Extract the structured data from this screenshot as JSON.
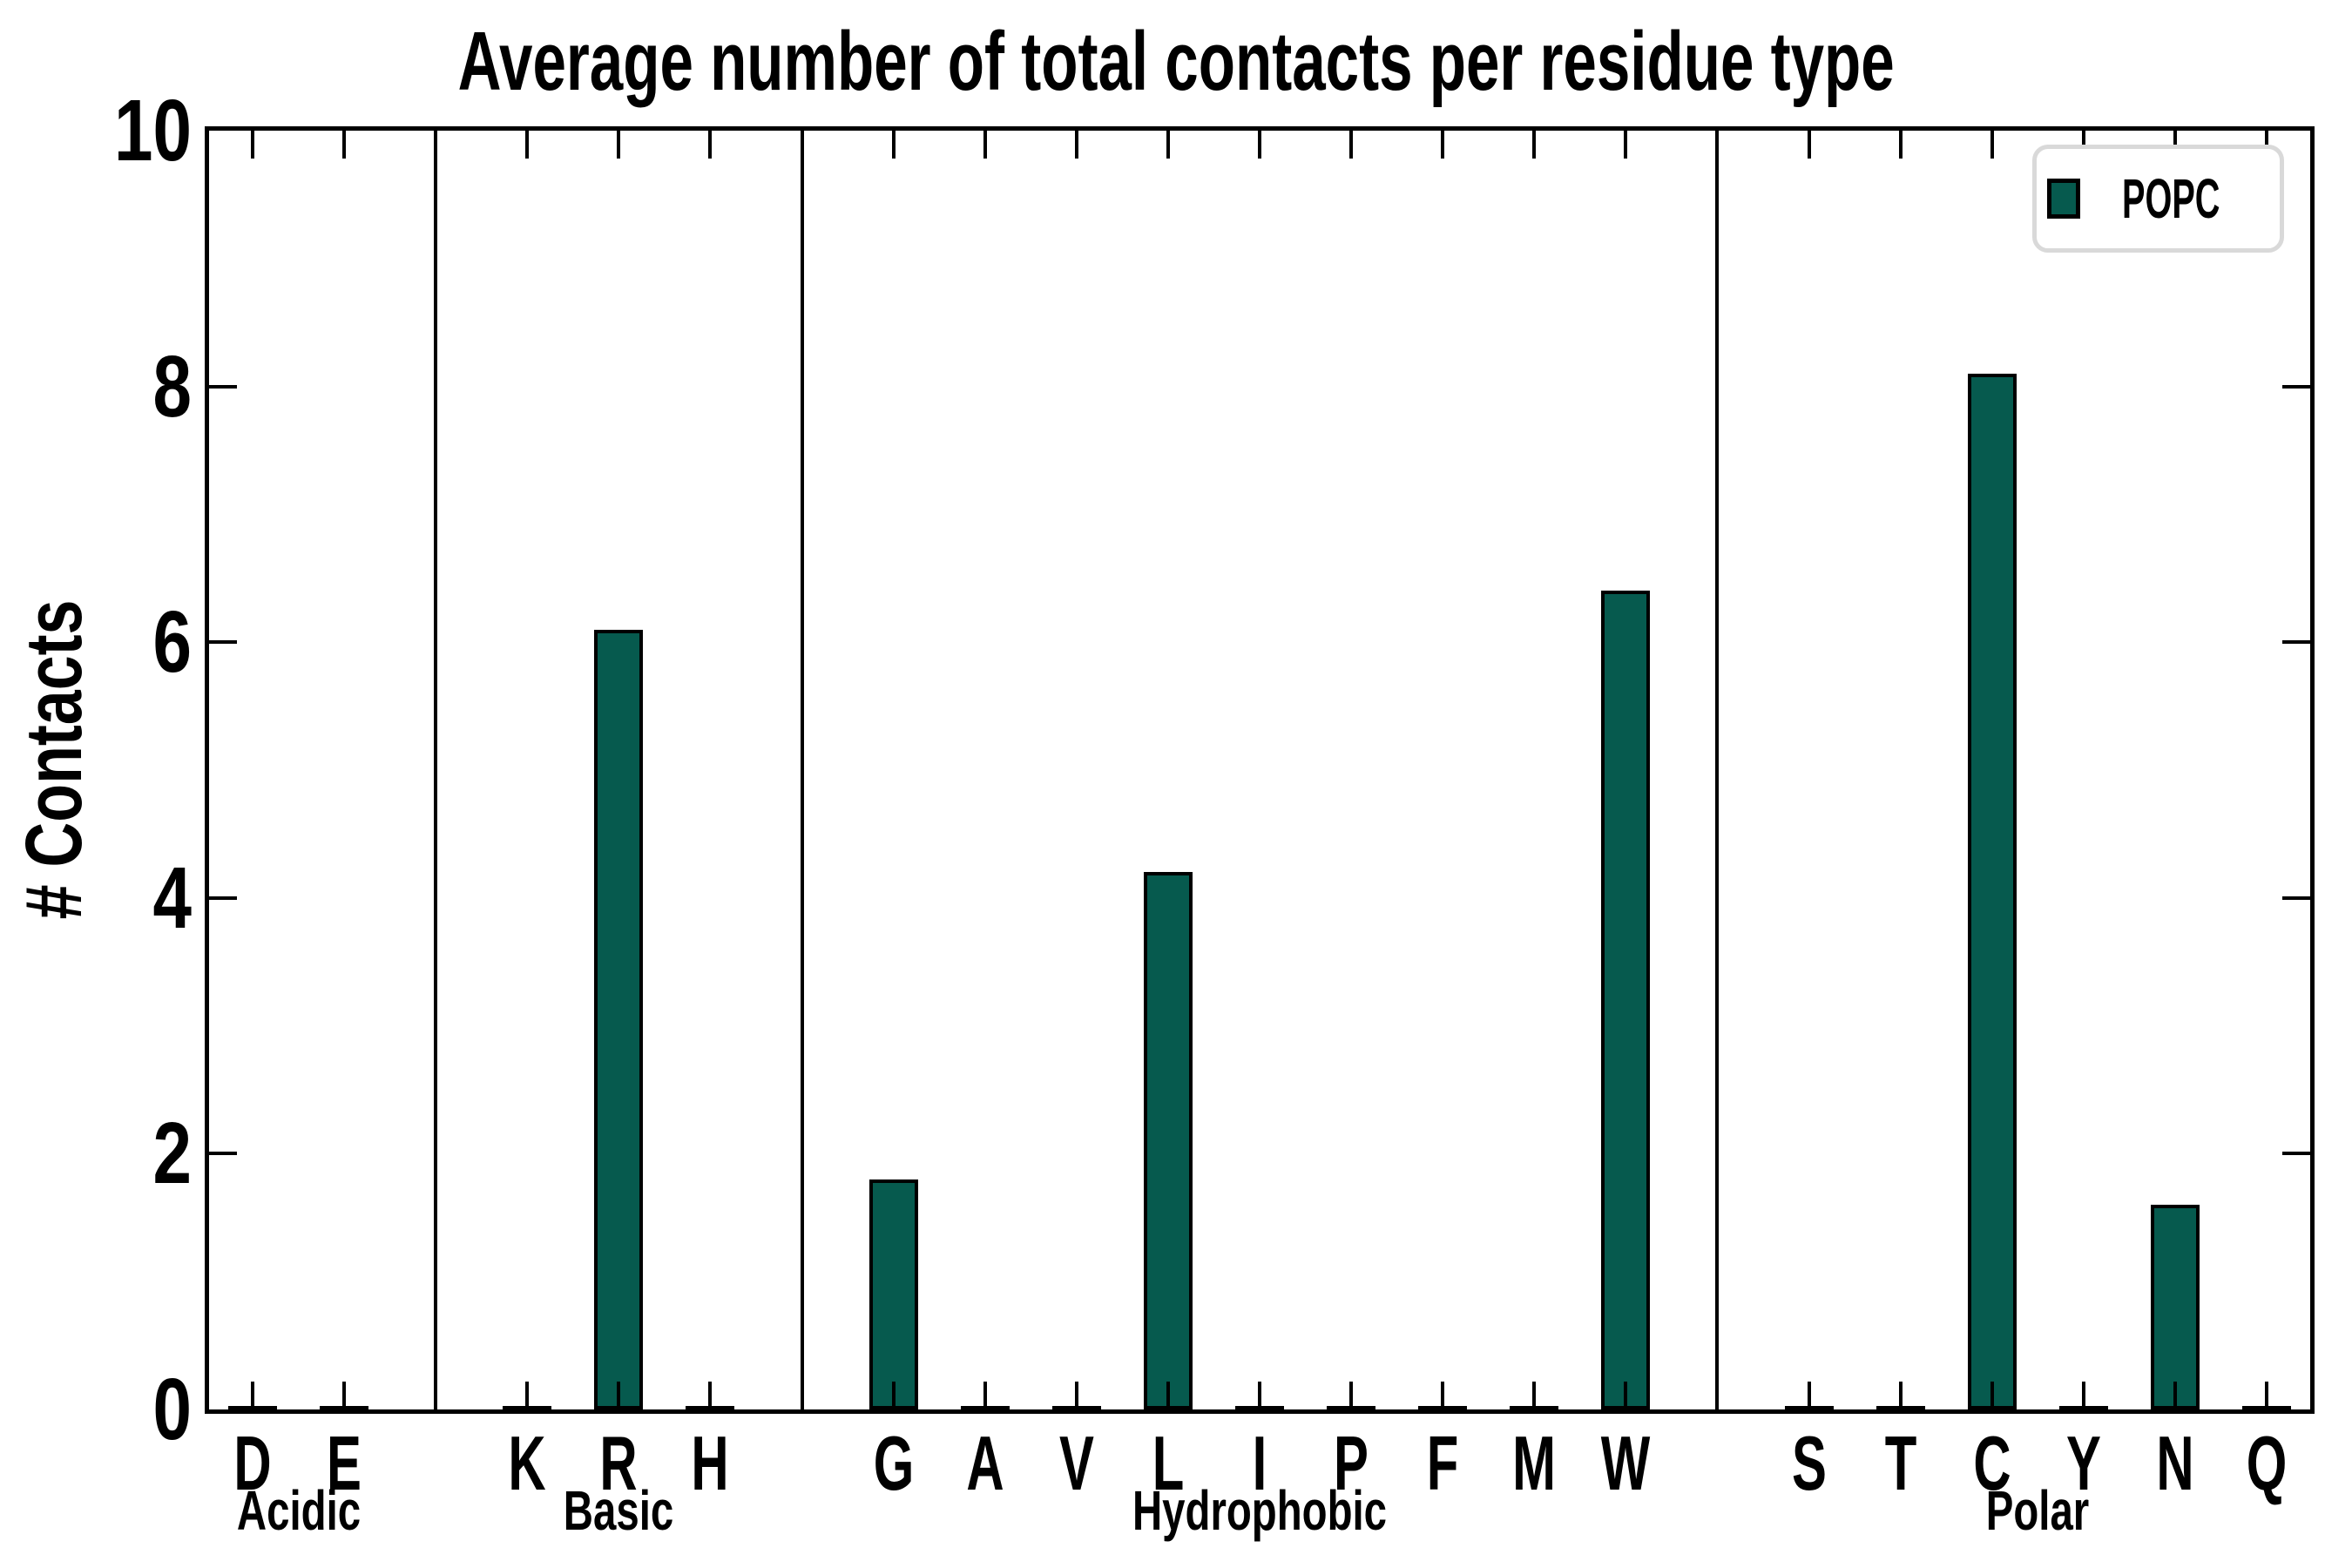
{
  "chart_data": {
    "type": "bar",
    "title": "Average number of total contacts per residue type",
    "ylabel": "# Contacts",
    "xlabel": "",
    "ylim": [
      0,
      10
    ],
    "yticks": [
      0,
      2,
      4,
      6,
      8,
      10
    ],
    "grid": false,
    "legend": {
      "label": "POPC",
      "position": "upper right"
    },
    "colors": {
      "bar_fill": "#065A4E",
      "bar_edge": "#000000",
      "axis": "#000000",
      "legend_border": "#d9d9d9",
      "background": "#ffffff"
    },
    "groups": [
      {
        "name": "Acidic",
        "categories": [
          "D",
          "E"
        ],
        "values": [
          0.03,
          0.03
        ]
      },
      {
        "name": "Basic",
        "categories": [
          "K",
          "R",
          "H"
        ],
        "values": [
          0.03,
          6.1,
          0.03
        ]
      },
      {
        "name": "Hydrophobic",
        "categories": [
          "G",
          "A",
          "V",
          "L",
          "I",
          "P",
          "F",
          "M",
          "W"
        ],
        "values": [
          1.8,
          0.03,
          0.03,
          4.2,
          0.03,
          0.03,
          0.03,
          0.03,
          6.4
        ]
      },
      {
        "name": "Polar",
        "categories": [
          "S",
          "T",
          "C",
          "Y",
          "N",
          "Q"
        ],
        "values": [
          0.03,
          0.03,
          8.1,
          0.03,
          1.6,
          0.03
        ]
      }
    ]
  }
}
